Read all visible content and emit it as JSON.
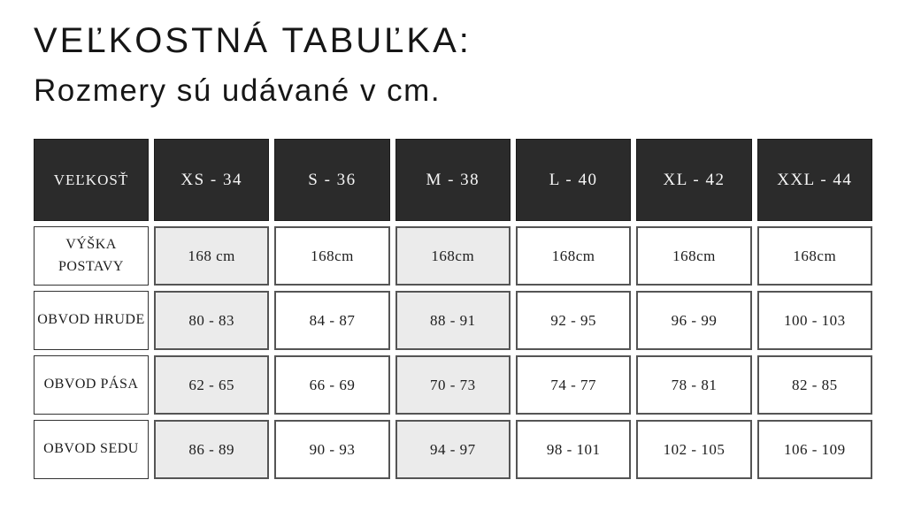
{
  "page": {
    "title": "VEĽKOSTNÁ TABUĽKA:",
    "subtitle": "Rozmery sú udávané v cm."
  },
  "table": {
    "corner_label": "VEĽKOSŤ",
    "columns": [
      {
        "label": "XS - 34",
        "shaded": true
      },
      {
        "label": "S - 36",
        "shaded": false
      },
      {
        "label": "M - 38",
        "shaded": true
      },
      {
        "label": "L - 40",
        "shaded": false
      },
      {
        "label": "XL - 42",
        "shaded": false
      },
      {
        "label": "XXL - 44",
        "shaded": false
      }
    ],
    "rows": [
      {
        "label": "VÝŠKA POSTAVY",
        "values": [
          "168 cm",
          "168cm",
          "168cm",
          "168cm",
          "168cm",
          "168cm"
        ]
      },
      {
        "label": "OBVOD HRUDE",
        "values": [
          "80 - 83",
          "84 - 87",
          "88 - 91",
          "92 - 95",
          "96 - 99",
          "100 - 103"
        ]
      },
      {
        "label": "OBVOD PÁSA",
        "values": [
          "62 - 65",
          "66 - 69",
          "70 - 73",
          "74 - 77",
          "78 - 81",
          "82 - 85"
        ]
      },
      {
        "label": "OBVOD SEDU",
        "values": [
          "86 - 89",
          "90 - 93",
          "94 - 97",
          "98 - 101",
          "102 - 105",
          "106 - 109"
        ]
      }
    ]
  },
  "colors": {
    "header_bg": "#2b2b2b",
    "header_text": "#f6f6f6",
    "shaded_cell_bg": "#ebebeb",
    "cell_border": "#555555",
    "label_border": "#333333",
    "text": "#1d1d1d"
  }
}
